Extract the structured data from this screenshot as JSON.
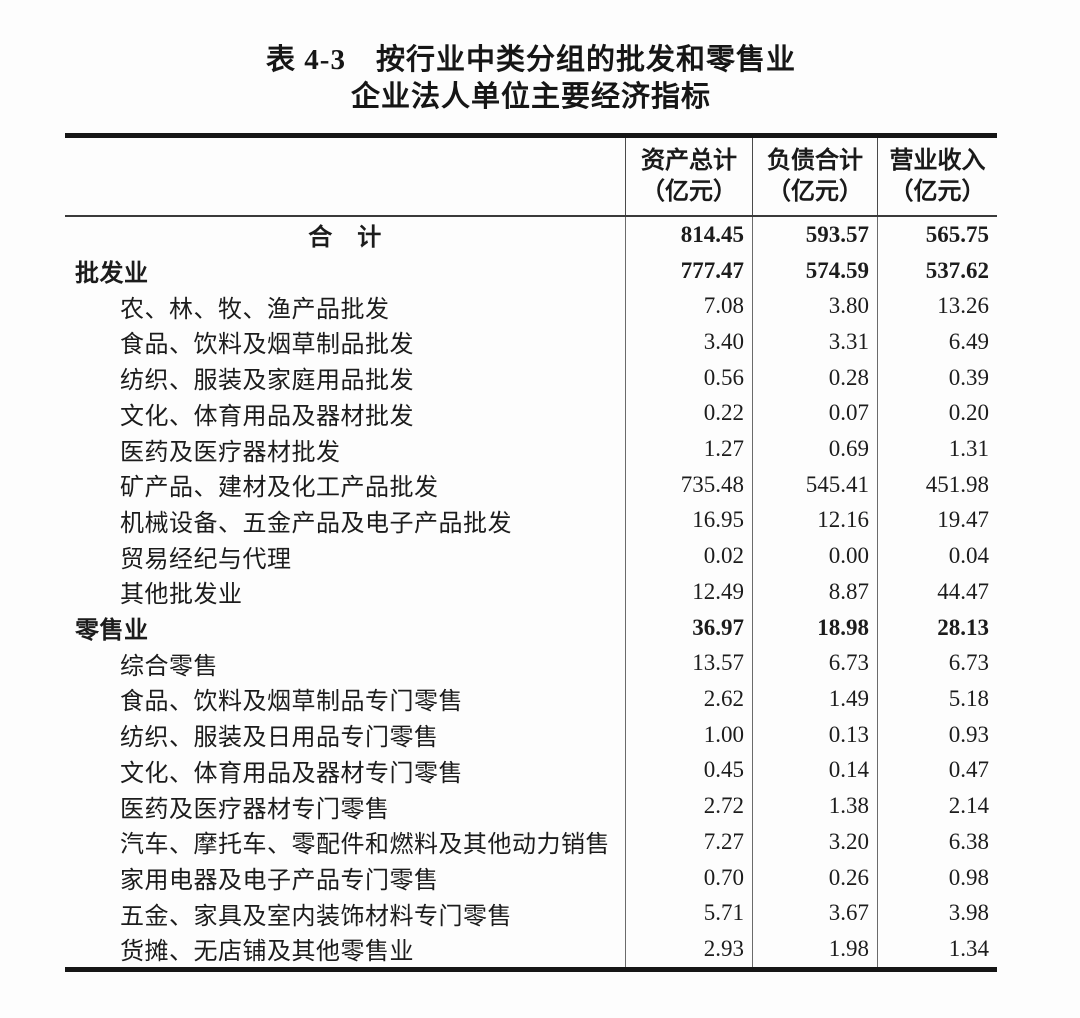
{
  "title": {
    "line1": "表 4-3　按行业中类分组的批发和零售业",
    "line2": "企业法人单位主要经济指标"
  },
  "table": {
    "columns": [
      {
        "name": "资产总计",
        "unit": "（亿元）"
      },
      {
        "name": "负债合计",
        "unit": "（亿元）"
      },
      {
        "name": "营业收入",
        "unit": "（亿元）"
      }
    ],
    "rows": [
      {
        "label": "合　计",
        "assets": "814.45",
        "liabilities": "593.57",
        "revenue": "565.75"
      },
      {
        "label": "批发业",
        "assets": "777.47",
        "liabilities": "574.59",
        "revenue": "537.62"
      },
      {
        "label": "农、林、牧、渔产品批发",
        "assets": "7.08",
        "liabilities": "3.80",
        "revenue": "13.26"
      },
      {
        "label": "食品、饮料及烟草制品批发",
        "assets": "3.40",
        "liabilities": "3.31",
        "revenue": "6.49"
      },
      {
        "label": "纺织、服装及家庭用品批发",
        "assets": "0.56",
        "liabilities": "0.28",
        "revenue": "0.39"
      },
      {
        "label": "文化、体育用品及器材批发",
        "assets": "0.22",
        "liabilities": "0.07",
        "revenue": "0.20"
      },
      {
        "label": "医药及医疗器材批发",
        "assets": "1.27",
        "liabilities": "0.69",
        "revenue": "1.31"
      },
      {
        "label": "矿产品、建材及化工产品批发",
        "assets": "735.48",
        "liabilities": "545.41",
        "revenue": "451.98"
      },
      {
        "label": "机械设备、五金产品及电子产品批发",
        "assets": "16.95",
        "liabilities": "12.16",
        "revenue": "19.47"
      },
      {
        "label": "贸易经纪与代理",
        "assets": "0.02",
        "liabilities": "0.00",
        "revenue": "0.04"
      },
      {
        "label": "其他批发业",
        "assets": "12.49",
        "liabilities": "8.87",
        "revenue": "44.47"
      },
      {
        "label": "零售业",
        "assets": "36.97",
        "liabilities": "18.98",
        "revenue": "28.13"
      },
      {
        "label": "综合零售",
        "assets": "13.57",
        "liabilities": "6.73",
        "revenue": "6.73"
      },
      {
        "label": "食品、饮料及烟草制品专门零售",
        "assets": "2.62",
        "liabilities": "1.49",
        "revenue": "5.18"
      },
      {
        "label": "纺织、服装及日用品专门零售",
        "assets": "1.00",
        "liabilities": "0.13",
        "revenue": "0.93"
      },
      {
        "label": "文化、体育用品及器材专门零售",
        "assets": "0.45",
        "liabilities": "0.14",
        "revenue": "0.47"
      },
      {
        "label": "医药及医疗器材专门零售",
        "assets": "2.72",
        "liabilities": "1.38",
        "revenue": "2.14"
      },
      {
        "label": "汽车、摩托车、零配件和燃料及其他动力销售",
        "assets": "7.27",
        "liabilities": "3.20",
        "revenue": "6.38"
      },
      {
        "label": "家用电器及电子产品专门零售",
        "assets": "0.70",
        "liabilities": "0.26",
        "revenue": "0.98"
      },
      {
        "label": "五金、家具及室内装饰材料专门零售",
        "assets": "5.71",
        "liabilities": "3.67",
        "revenue": "3.98"
      },
      {
        "label": "货摊、无店铺及其他零售业",
        "assets": "2.93",
        "liabilities": "1.98",
        "revenue": "1.34"
      }
    ]
  }
}
